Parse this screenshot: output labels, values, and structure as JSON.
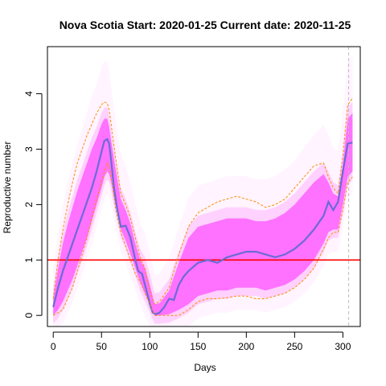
{
  "chart_data": {
    "type": "line",
    "title": "Nova Scotia Start:  2020-01-25   Current date:  2020-11-25",
    "xlabel": "Days",
    "ylabel": "Reproductive number",
    "xlim": [
      -6,
      318
    ],
    "ylim": [
      -0.2,
      4.85
    ],
    "xticks": [
      0,
      50,
      100,
      150,
      200,
      250,
      300
    ],
    "yticks": [
      0,
      1,
      2,
      3,
      4
    ],
    "grid": false,
    "legend": "none",
    "reference_lines": [
      {
        "orientation": "horizontal",
        "y": 1,
        "color": "#ff0000"
      },
      {
        "orientation": "vertical",
        "x": 306,
        "color": "#bebebe",
        "style": "dashed"
      }
    ],
    "series": [
      {
        "color": "#6b6bd6",
        "style": "solid",
        "x": [
          0,
          5,
          10,
          15,
          20,
          25,
          30,
          35,
          40,
          45,
          50,
          53,
          56,
          58,
          60,
          63,
          66,
          70,
          75,
          80,
          85,
          88,
          92,
          95,
          98,
          100,
          103,
          106,
          110,
          115,
          120,
          125,
          130,
          135,
          140,
          150,
          160,
          170,
          180,
          190,
          200,
          210,
          220,
          230,
          240,
          250,
          260,
          270,
          280,
          285,
          290,
          295,
          300,
          305,
          310
        ],
        "y": [
          0.15,
          0.5,
          0.8,
          1.05,
          1.3,
          1.55,
          1.8,
          2.05,
          2.3,
          2.6,
          2.95,
          3.15,
          3.18,
          3.1,
          2.8,
          2.3,
          1.95,
          1.6,
          1.62,
          1.4,
          1.0,
          0.8,
          0.75,
          0.55,
          0.35,
          0.2,
          0.05,
          0.02,
          0.05,
          0.15,
          0.3,
          0.28,
          0.55,
          0.7,
          0.8,
          0.95,
          1.0,
          0.95,
          1.05,
          1.1,
          1.15,
          1.15,
          1.1,
          1.05,
          1.1,
          1.2,
          1.35,
          1.55,
          1.8,
          2.05,
          1.9,
          2.05,
          2.6,
          3.1,
          3.12
        ]
      },
      {
        "color": "#ff8c00",
        "style": "dashed",
        "x": [
          0,
          5,
          10,
          15,
          20,
          25,
          30,
          35,
          40,
          45,
          50,
          53,
          56,
          58,
          60,
          65,
          70,
          75,
          80,
          85,
          90,
          95,
          100,
          105,
          110,
          120,
          130,
          140,
          150,
          160,
          170,
          180,
          190,
          200,
          210,
          220,
          230,
          240,
          250,
          260,
          270,
          280,
          285,
          290,
          295,
          300,
          305,
          310
        ],
        "y": [
          0.3,
          1.0,
          1.55,
          2.0,
          2.4,
          2.75,
          3.0,
          3.25,
          3.45,
          3.65,
          3.8,
          3.85,
          3.83,
          3.7,
          3.45,
          2.8,
          2.2,
          2.0,
          1.75,
          1.4,
          1.05,
          0.85,
          0.45,
          0.2,
          0.25,
          0.5,
          1.1,
          1.6,
          1.85,
          1.95,
          2.05,
          2.1,
          2.15,
          2.1,
          2.05,
          1.95,
          2.0,
          2.1,
          2.3,
          2.5,
          2.7,
          2.75,
          2.5,
          2.3,
          2.2,
          2.9,
          3.8,
          3.92
        ]
      },
      {
        "color": "#ff8c00",
        "style": "dashed",
        "x": [
          0,
          5,
          10,
          15,
          20,
          25,
          30,
          35,
          40,
          45,
          50,
          53,
          56,
          58,
          60,
          65,
          70,
          75,
          80,
          85,
          90,
          95,
          100,
          105,
          110,
          120,
          130,
          140,
          150,
          160,
          170,
          180,
          190,
          200,
          210,
          220,
          230,
          240,
          250,
          260,
          270,
          280,
          285,
          290,
          295,
          300,
          305,
          310
        ],
        "y": [
          0.0,
          0.05,
          0.1,
          0.3,
          0.5,
          0.8,
          1.1,
          1.4,
          1.75,
          2.1,
          2.4,
          2.6,
          2.75,
          2.7,
          2.5,
          1.9,
          1.5,
          1.25,
          1.0,
          0.75,
          0.6,
          0.4,
          0.2,
          0.0,
          0.0,
          0.0,
          0.0,
          0.1,
          0.25,
          0.3,
          0.3,
          0.32,
          0.35,
          0.35,
          0.3,
          0.3,
          0.35,
          0.4,
          0.5,
          0.65,
          0.85,
          1.2,
          1.4,
          1.5,
          1.5,
          1.9,
          2.4,
          2.5
        ]
      }
    ],
    "bands": [
      {
        "color": "#ff66ff",
        "x": [
          0,
          5,
          10,
          15,
          20,
          25,
          30,
          35,
          40,
          45,
          50,
          53,
          56,
          58,
          60,
          65,
          70,
          75,
          80,
          85,
          90,
          95,
          100,
          105,
          110,
          120,
          130,
          140,
          150,
          160,
          170,
          180,
          190,
          200,
          210,
          220,
          230,
          240,
          250,
          260,
          270,
          280,
          285,
          290,
          295,
          300,
          305,
          310
        ],
        "upper": [
          0.3,
          0.85,
          1.3,
          1.65,
          1.95,
          2.25,
          2.5,
          2.75,
          3.0,
          3.2,
          3.45,
          3.55,
          3.55,
          3.4,
          3.15,
          2.6,
          2.1,
          1.9,
          1.65,
          1.3,
          1.0,
          0.85,
          0.55,
          0.2,
          0.22,
          0.45,
          0.95,
          1.4,
          1.6,
          1.65,
          1.7,
          1.75,
          1.75,
          1.75,
          1.7,
          1.7,
          1.75,
          1.85,
          2.0,
          2.2,
          2.4,
          2.55,
          2.4,
          2.2,
          2.15,
          2.75,
          3.55,
          3.65
        ],
        "lower": [
          0.0,
          0.1,
          0.25,
          0.45,
          0.65,
          0.9,
          1.15,
          1.4,
          1.7,
          2.0,
          2.3,
          2.5,
          2.6,
          2.55,
          2.4,
          1.95,
          1.55,
          1.35,
          1.1,
          0.85,
          0.6,
          0.4,
          0.2,
          0.0,
          0.0,
          0.02,
          0.1,
          0.2,
          0.35,
          0.4,
          0.45,
          0.45,
          0.5,
          0.5,
          0.5,
          0.45,
          0.5,
          0.55,
          0.65,
          0.8,
          1.0,
          1.3,
          1.5,
          1.55,
          1.55,
          2.0,
          2.5,
          2.6
        ]
      }
    ]
  }
}
